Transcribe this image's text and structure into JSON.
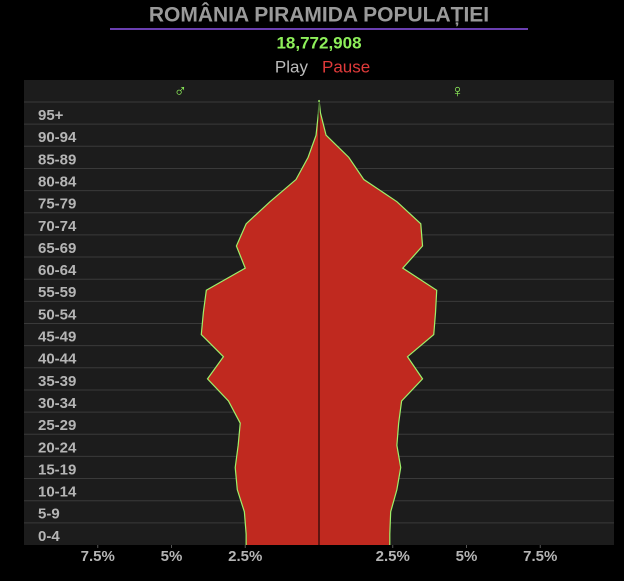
{
  "chart_data": {
    "type": "pyramid",
    "title": "ROMÂNIA PIRAMIDA POPULAȚIEI",
    "subtitle": "18,772,908",
    "controls": [
      "Play",
      "Pause"
    ],
    "categories": [
      "0-4",
      "5-9",
      "10-14",
      "15-19",
      "20-24",
      "25-29",
      "30-34",
      "35-39",
      "40-44",
      "45-49",
      "50-54",
      "55-59",
      "60-64",
      "65-69",
      "70-74",
      "75-79",
      "80-84",
      "85-89",
      "90-94",
      "95+"
    ],
    "series": [
      {
        "name": "♂",
        "side": "left",
        "color": "#c0291f",
        "values": [
          2.47,
          2.53,
          2.77,
          2.84,
          2.74,
          2.67,
          3.07,
          3.78,
          3.24,
          3.99,
          3.92,
          3.82,
          2.5,
          2.8,
          2.47,
          1.66,
          0.78,
          0.37,
          0.1,
          0.02
        ]
      },
      {
        "name": "♀",
        "side": "right",
        "color": "#c0291f",
        "values": [
          2.4,
          2.43,
          2.64,
          2.77,
          2.64,
          2.7,
          2.8,
          3.51,
          3.0,
          3.89,
          3.95,
          3.99,
          2.84,
          3.51,
          3.45,
          2.64,
          1.52,
          1.01,
          0.24,
          0.05
        ]
      }
    ],
    "xlim": [
      -10,
      10
    ],
    "xticks": [
      {
        "value": -7.5,
        "label": "7.5%"
      },
      {
        "value": -5,
        "label": "5%"
      },
      {
        "value": -2.5,
        "label": "2.5%"
      },
      {
        "value": 2.5,
        "label": "2.5%"
      },
      {
        "value": 5,
        "label": "5%"
      },
      {
        "value": 7.5,
        "label": "7.5%"
      }
    ],
    "grid": true
  }
}
